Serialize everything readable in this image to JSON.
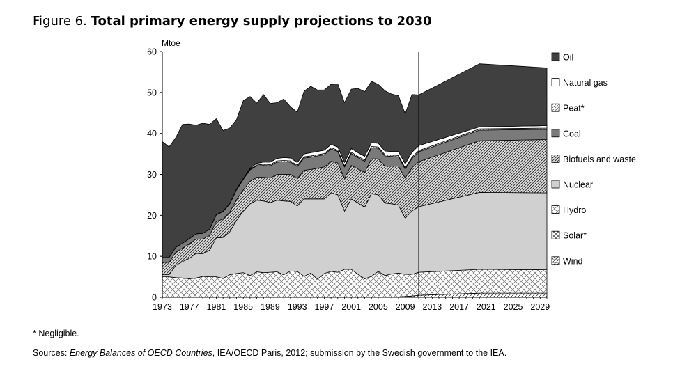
{
  "figure": {
    "label": "Figure 6.",
    "title": "Total primary energy supply projections to 2030"
  },
  "footnote": "* Negligible.",
  "sources": {
    "prefix": "Sources: ",
    "italic": "Energy Balances of OECD Countries",
    "rest": ", IEA/OECD Paris, 2012; submission by the Swedish government to the IEA."
  },
  "chart_data": {
    "type": "area",
    "stacked": true,
    "ylabel": "Mtoe",
    "ylim": [
      0,
      60
    ],
    "xlim": [
      1973,
      2030
    ],
    "yticks": [
      0,
      10,
      20,
      30,
      40,
      50,
      60
    ],
    "xticks": [
      1973,
      1977,
      1981,
      1985,
      1989,
      1993,
      1997,
      2001,
      2005,
      2009,
      2013,
      2017,
      2021,
      2025,
      2029
    ],
    "projection_start": 2011,
    "legend_position": "right",
    "x": [
      1973,
      1974,
      1975,
      1976,
      1977,
      1978,
      1979,
      1980,
      1981,
      1982,
      1983,
      1984,
      1985,
      1986,
      1987,
      1988,
      1989,
      1990,
      1991,
      1992,
      1993,
      1994,
      1995,
      1996,
      1997,
      1998,
      1999,
      2000,
      2001,
      2002,
      2003,
      2004,
      2005,
      2006,
      2007,
      2008,
      2009,
      2010,
      2011,
      2020,
      2030
    ],
    "series": [
      {
        "name": "Wind",
        "values": [
          0,
          0,
          0,
          0,
          0,
          0,
          0,
          0,
          0,
          0,
          0,
          0,
          0,
          0,
          0,
          0,
          0,
          0,
          0,
          0,
          0,
          0,
          0,
          0,
          0,
          0,
          0,
          0,
          0,
          0,
          0,
          0,
          0,
          0,
          0.1,
          0.1,
          0.2,
          0.3,
          0.5,
          1.0,
          1.0
        ]
      },
      {
        "name": "Solar*",
        "values": [
          0,
          0,
          0,
          0,
          0,
          0,
          0,
          0,
          0,
          0,
          0,
          0,
          0,
          0,
          0,
          0,
          0,
          0,
          0,
          0,
          0,
          0,
          0,
          0,
          0,
          0,
          0,
          0,
          0,
          0,
          0,
          0,
          0,
          0,
          0,
          0,
          0,
          0,
          0,
          0,
          0
        ]
      },
      {
        "name": "Hydro",
        "values": [
          5.0,
          5.0,
          4.8,
          4.7,
          4.5,
          4.7,
          5.1,
          5.0,
          5.0,
          4.6,
          5.5,
          5.8,
          6.0,
          5.3,
          6.2,
          6.0,
          6.1,
          6.2,
          5.5,
          6.4,
          6.3,
          5.1,
          5.9,
          4.4,
          5.8,
          6.3,
          6.1,
          6.8,
          6.8,
          5.6,
          4.5,
          5.1,
          6.3,
          5.3,
          5.6,
          5.8,
          5.4,
          5.3,
          5.6,
          5.8,
          5.7
        ]
      },
      {
        "name": "Nuclear",
        "values": [
          0.5,
          0.5,
          3.0,
          4.0,
          5.0,
          6.0,
          5.5,
          6.5,
          9.5,
          10.0,
          10.5,
          13.0,
          15.0,
          17.5,
          17.5,
          17.5,
          17.0,
          17.5,
          18.0,
          17.0,
          16.0,
          18.9,
          18.1,
          19.6,
          18.2,
          19.2,
          18.9,
          14.2,
          17.2,
          17.4,
          17.5,
          20.2,
          18.7,
          17.7,
          17.1,
          16.6,
          13.7,
          15.5,
          16.0,
          18.8,
          18.8
        ]
      },
      {
        "name": "Biofuels and waste",
        "values": [
          3.0,
          3.0,
          3.2,
          3.3,
          3.5,
          3.5,
          3.6,
          3.6,
          4.0,
          4.5,
          4.8,
          5.0,
          5.2,
          5.5,
          5.6,
          5.8,
          6.0,
          6.3,
          6.5,
          6.6,
          6.7,
          7.0,
          7.2,
          7.5,
          7.8,
          7.7,
          7.8,
          8.0,
          8.2,
          8.3,
          8.5,
          8.5,
          8.8,
          9.0,
          9.2,
          9.5,
          9.8,
          10.5,
          11.0,
          12.6,
          13.0
        ]
      },
      {
        "name": "Coal",
        "values": [
          1.2,
          1.2,
          1.2,
          1.2,
          1.3,
          1.3,
          1.4,
          1.5,
          1.6,
          1.8,
          2.0,
          2.4,
          2.6,
          2.8,
          2.8,
          2.9,
          3.0,
          3.0,
          3.1,
          3.0,
          2.9,
          3.0,
          3.0,
          3.0,
          3.0,
          3.0,
          2.8,
          2.8,
          2.9,
          2.8,
          2.7,
          2.7,
          2.6,
          2.5,
          2.4,
          2.3,
          2.2,
          2.3,
          2.4,
          2.6,
          2.5
        ]
      },
      {
        "name": "Peat*",
        "values": [
          0,
          0,
          0,
          0,
          0,
          0,
          0,
          0,
          0.1,
          0.1,
          0.1,
          0.2,
          0.2,
          0.2,
          0.2,
          0.3,
          0.3,
          0.3,
          0.3,
          0.3,
          0.3,
          0.3,
          0.3,
          0.3,
          0.3,
          0.3,
          0.3,
          0.3,
          0.3,
          0.3,
          0.3,
          0.3,
          0.3,
          0.3,
          0.3,
          0.3,
          0.3,
          0.3,
          0.3,
          0.3,
          0.3
        ]
      },
      {
        "name": "Natural gas",
        "values": [
          0,
          0,
          0,
          0,
          0,
          0,
          0,
          0,
          0,
          0,
          0,
          0,
          0,
          0.2,
          0.4,
          0.5,
          0.6,
          0.6,
          0.7,
          0.7,
          0.7,
          0.7,
          0.8,
          0.8,
          0.8,
          0.8,
          0.8,
          0.8,
          0.9,
          0.9,
          0.9,
          0.9,
          0.9,
          0.9,
          0.9,
          1.0,
          1.0,
          1.2,
          1.2,
          0.5,
          0.6
        ]
      },
      {
        "name": "Oil",
        "values": [
          28.3,
          27.0,
          26.8,
          29.0,
          28.0,
          26.5,
          26.9,
          25.6,
          23.4,
          19.7,
          18.4,
          17.0,
          19.0,
          17.5,
          14.7,
          16.5,
          14.3,
          13.6,
          14.3,
          12.5,
          12.3,
          15.3,
          16.2,
          15.0,
          14.7,
          14.7,
          15.4,
          14.6,
          14.5,
          15.7,
          15.8,
          15.0,
          14.4,
          14.7,
          14.0,
          13.6,
          12.2,
          14.1,
          12.4,
          15.4,
          14.1
        ]
      }
    ]
  }
}
